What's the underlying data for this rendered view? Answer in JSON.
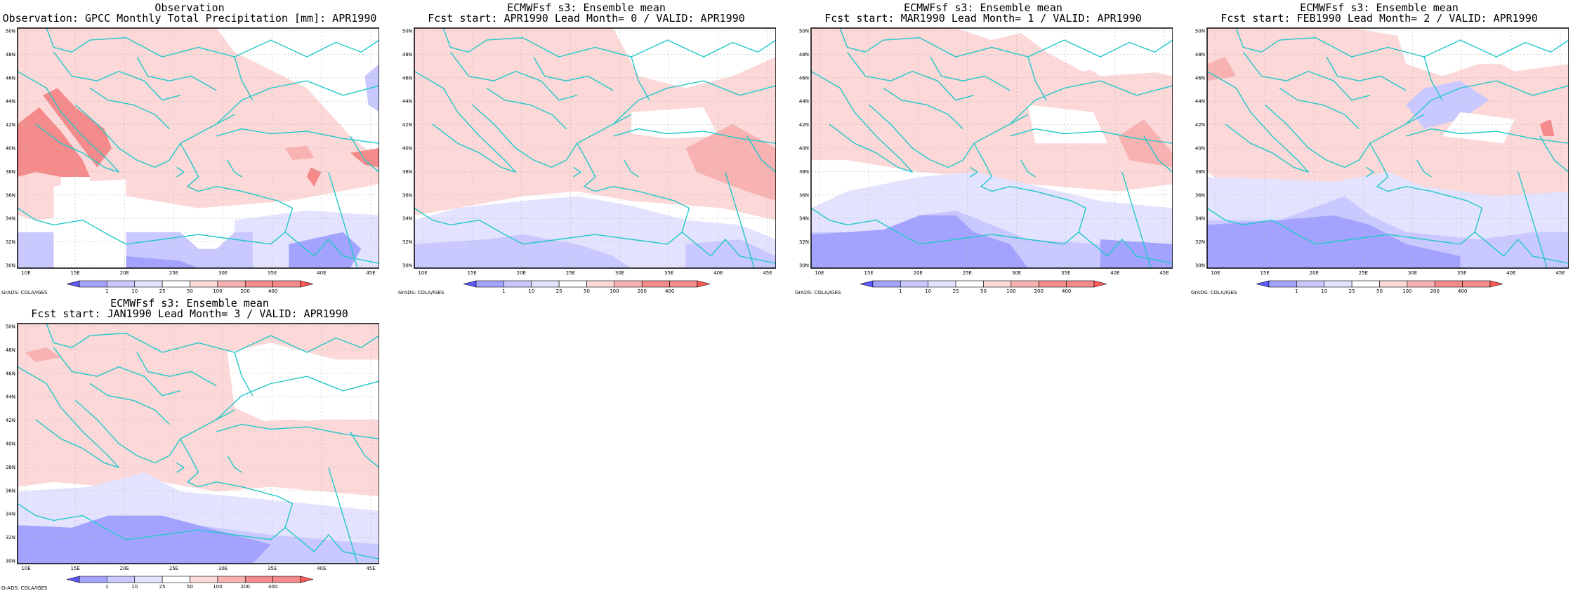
{
  "colors": {
    "blue_strong": "#a3a3ff",
    "blue_mid": "#c9c9ff",
    "blue_light": "#e3e3ff",
    "white": "#ffffff",
    "red_light": "#fcd8d8",
    "red_mid": "#f8b2b2",
    "red_strong": "#f58a8a",
    "coast": "#22c8c8",
    "grid": "#bbbbbb"
  },
  "map": {
    "lat_labels": [
      "30N",
      "32N",
      "34N",
      "36N",
      "38N",
      "40N",
      "42N",
      "44N",
      "46N",
      "48N",
      "50N"
    ],
    "lon_labels": [
      "10E",
      "15E",
      "20E",
      "25E",
      "30E",
      "35E",
      "40E",
      "45E"
    ],
    "colorbar_labels": [
      "1",
      "10",
      "25",
      "50",
      "100",
      "200",
      "400"
    ],
    "credit": "GrADS: COLA/IGES"
  },
  "panels": [
    {
      "id": "obs",
      "title1": "Observation",
      "title2": "Observation: GPCC Monthly Total Precipitation [mm]: APR1990"
    },
    {
      "id": "lead0",
      "title1": "ECMWFsf s3: Ensemble mean",
      "title2": "Fcst start: APR1990  Lead Month= 0 / VALID: APR1990"
    },
    {
      "id": "lead1",
      "title1": "ECMWFsf s3: Ensemble mean",
      "title2": "Fcst start: MAR1990  Lead Month= 1 / VALID: APR1990"
    },
    {
      "id": "lead2",
      "title1": "ECMWFsf s3: Ensemble mean",
      "title2": "Fcst start: FEB1990  Lead Month= 2 / VALID: APR1990"
    },
    {
      "id": "lead3",
      "title1": "ECMWFsf s3: Ensemble mean",
      "title2": "Fcst start: JAN1990  Lead Month= 3 / VALID: APR1990"
    }
  ]
}
